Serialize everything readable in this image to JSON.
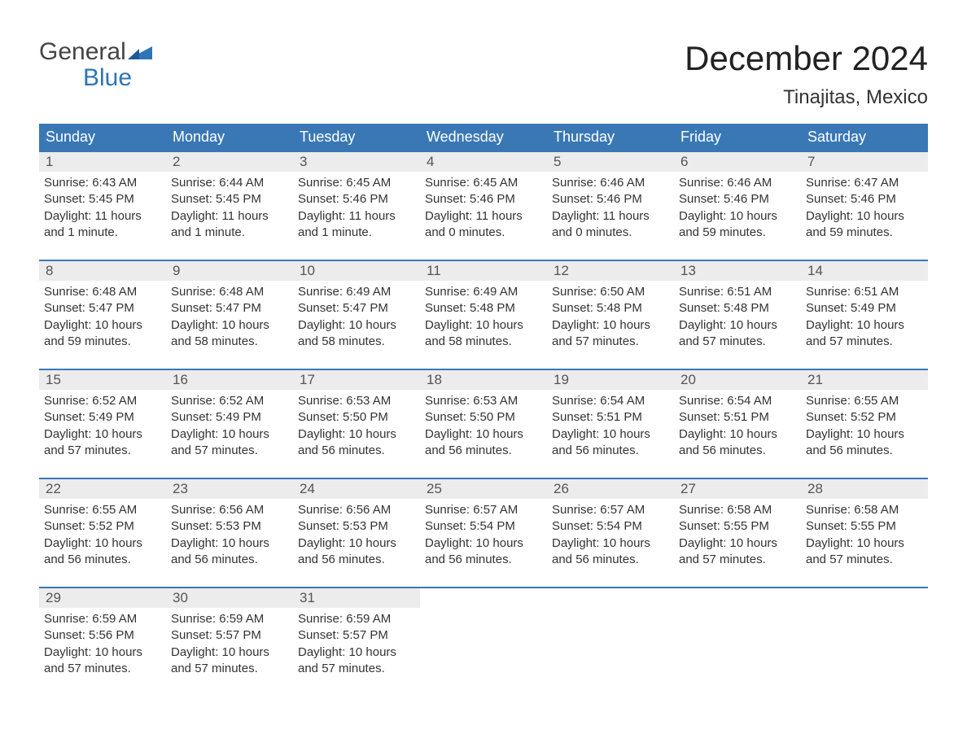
{
  "logo": {
    "word1": "General",
    "word2": "Blue"
  },
  "title": "December 2024",
  "location": "Tinajitas, Mexico",
  "colors": {
    "header_bg": "#3a78b5",
    "header_text": "#ffffff",
    "daynum_bg": "#ececec",
    "body_text": "#333333",
    "logo_blue": "#2e75b6",
    "week_border": "#3a78b5",
    "page_bg": "#ffffff"
  },
  "fonts": {
    "title_size_pt": 32,
    "location_size_pt": 18,
    "day_header_size_pt": 14,
    "body_size_pt": 11,
    "logo_size_pt": 22
  },
  "day_headers": [
    "Sunday",
    "Monday",
    "Tuesday",
    "Wednesday",
    "Thursday",
    "Friday",
    "Saturday"
  ],
  "weeks": [
    [
      {
        "n": "1",
        "sunrise": "Sunrise: 6:43 AM",
        "sunset": "Sunset: 5:45 PM",
        "dl1": "Daylight: 11 hours",
        "dl2": "and 1 minute."
      },
      {
        "n": "2",
        "sunrise": "Sunrise: 6:44 AM",
        "sunset": "Sunset: 5:45 PM",
        "dl1": "Daylight: 11 hours",
        "dl2": "and 1 minute."
      },
      {
        "n": "3",
        "sunrise": "Sunrise: 6:45 AM",
        "sunset": "Sunset: 5:46 PM",
        "dl1": "Daylight: 11 hours",
        "dl2": "and 1 minute."
      },
      {
        "n": "4",
        "sunrise": "Sunrise: 6:45 AM",
        "sunset": "Sunset: 5:46 PM",
        "dl1": "Daylight: 11 hours",
        "dl2": "and 0 minutes."
      },
      {
        "n": "5",
        "sunrise": "Sunrise: 6:46 AM",
        "sunset": "Sunset: 5:46 PM",
        "dl1": "Daylight: 11 hours",
        "dl2": "and 0 minutes."
      },
      {
        "n": "6",
        "sunrise": "Sunrise: 6:46 AM",
        "sunset": "Sunset: 5:46 PM",
        "dl1": "Daylight: 10 hours",
        "dl2": "and 59 minutes."
      },
      {
        "n": "7",
        "sunrise": "Sunrise: 6:47 AM",
        "sunset": "Sunset: 5:46 PM",
        "dl1": "Daylight: 10 hours",
        "dl2": "and 59 minutes."
      }
    ],
    [
      {
        "n": "8",
        "sunrise": "Sunrise: 6:48 AM",
        "sunset": "Sunset: 5:47 PM",
        "dl1": "Daylight: 10 hours",
        "dl2": "and 59 minutes."
      },
      {
        "n": "9",
        "sunrise": "Sunrise: 6:48 AM",
        "sunset": "Sunset: 5:47 PM",
        "dl1": "Daylight: 10 hours",
        "dl2": "and 58 minutes."
      },
      {
        "n": "10",
        "sunrise": "Sunrise: 6:49 AM",
        "sunset": "Sunset: 5:47 PM",
        "dl1": "Daylight: 10 hours",
        "dl2": "and 58 minutes."
      },
      {
        "n": "11",
        "sunrise": "Sunrise: 6:49 AM",
        "sunset": "Sunset: 5:48 PM",
        "dl1": "Daylight: 10 hours",
        "dl2": "and 58 minutes."
      },
      {
        "n": "12",
        "sunrise": "Sunrise: 6:50 AM",
        "sunset": "Sunset: 5:48 PM",
        "dl1": "Daylight: 10 hours",
        "dl2": "and 57 minutes."
      },
      {
        "n": "13",
        "sunrise": "Sunrise: 6:51 AM",
        "sunset": "Sunset: 5:48 PM",
        "dl1": "Daylight: 10 hours",
        "dl2": "and 57 minutes."
      },
      {
        "n": "14",
        "sunrise": "Sunrise: 6:51 AM",
        "sunset": "Sunset: 5:49 PM",
        "dl1": "Daylight: 10 hours",
        "dl2": "and 57 minutes."
      }
    ],
    [
      {
        "n": "15",
        "sunrise": "Sunrise: 6:52 AM",
        "sunset": "Sunset: 5:49 PM",
        "dl1": "Daylight: 10 hours",
        "dl2": "and 57 minutes."
      },
      {
        "n": "16",
        "sunrise": "Sunrise: 6:52 AM",
        "sunset": "Sunset: 5:49 PM",
        "dl1": "Daylight: 10 hours",
        "dl2": "and 57 minutes."
      },
      {
        "n": "17",
        "sunrise": "Sunrise: 6:53 AM",
        "sunset": "Sunset: 5:50 PM",
        "dl1": "Daylight: 10 hours",
        "dl2": "and 56 minutes."
      },
      {
        "n": "18",
        "sunrise": "Sunrise: 6:53 AM",
        "sunset": "Sunset: 5:50 PM",
        "dl1": "Daylight: 10 hours",
        "dl2": "and 56 minutes."
      },
      {
        "n": "19",
        "sunrise": "Sunrise: 6:54 AM",
        "sunset": "Sunset: 5:51 PM",
        "dl1": "Daylight: 10 hours",
        "dl2": "and 56 minutes."
      },
      {
        "n": "20",
        "sunrise": "Sunrise: 6:54 AM",
        "sunset": "Sunset: 5:51 PM",
        "dl1": "Daylight: 10 hours",
        "dl2": "and 56 minutes."
      },
      {
        "n": "21",
        "sunrise": "Sunrise: 6:55 AM",
        "sunset": "Sunset: 5:52 PM",
        "dl1": "Daylight: 10 hours",
        "dl2": "and 56 minutes."
      }
    ],
    [
      {
        "n": "22",
        "sunrise": "Sunrise: 6:55 AM",
        "sunset": "Sunset: 5:52 PM",
        "dl1": "Daylight: 10 hours",
        "dl2": "and 56 minutes."
      },
      {
        "n": "23",
        "sunrise": "Sunrise: 6:56 AM",
        "sunset": "Sunset: 5:53 PM",
        "dl1": "Daylight: 10 hours",
        "dl2": "and 56 minutes."
      },
      {
        "n": "24",
        "sunrise": "Sunrise: 6:56 AM",
        "sunset": "Sunset: 5:53 PM",
        "dl1": "Daylight: 10 hours",
        "dl2": "and 56 minutes."
      },
      {
        "n": "25",
        "sunrise": "Sunrise: 6:57 AM",
        "sunset": "Sunset: 5:54 PM",
        "dl1": "Daylight: 10 hours",
        "dl2": "and 56 minutes."
      },
      {
        "n": "26",
        "sunrise": "Sunrise: 6:57 AM",
        "sunset": "Sunset: 5:54 PM",
        "dl1": "Daylight: 10 hours",
        "dl2": "and 56 minutes."
      },
      {
        "n": "27",
        "sunrise": "Sunrise: 6:58 AM",
        "sunset": "Sunset: 5:55 PM",
        "dl1": "Daylight: 10 hours",
        "dl2": "and 57 minutes."
      },
      {
        "n": "28",
        "sunrise": "Sunrise: 6:58 AM",
        "sunset": "Sunset: 5:55 PM",
        "dl1": "Daylight: 10 hours",
        "dl2": "and 57 minutes."
      }
    ],
    [
      {
        "n": "29",
        "sunrise": "Sunrise: 6:59 AM",
        "sunset": "Sunset: 5:56 PM",
        "dl1": "Daylight: 10 hours",
        "dl2": "and 57 minutes."
      },
      {
        "n": "30",
        "sunrise": "Sunrise: 6:59 AM",
        "sunset": "Sunset: 5:57 PM",
        "dl1": "Daylight: 10 hours",
        "dl2": "and 57 minutes."
      },
      {
        "n": "31",
        "sunrise": "Sunrise: 6:59 AM",
        "sunset": "Sunset: 5:57 PM",
        "dl1": "Daylight: 10 hours",
        "dl2": "and 57 minutes."
      },
      {
        "empty": true
      },
      {
        "empty": true
      },
      {
        "empty": true
      },
      {
        "empty": true
      }
    ]
  ]
}
